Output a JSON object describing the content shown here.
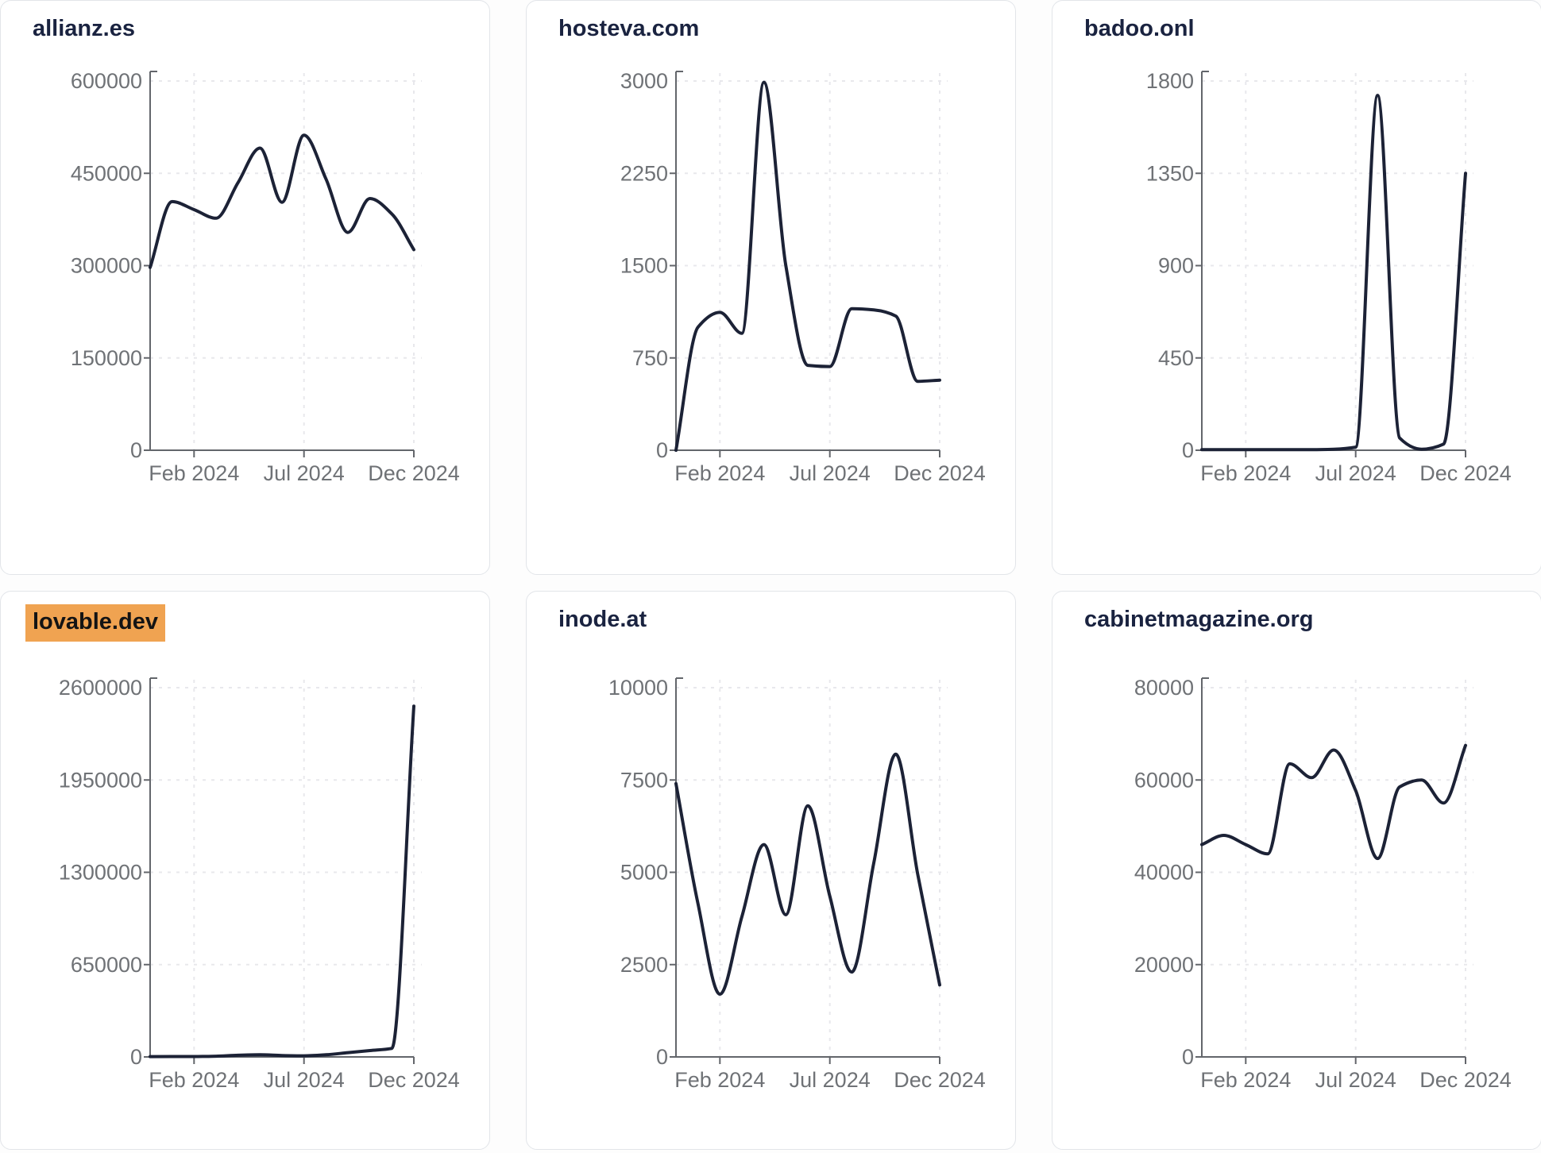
{
  "colors": {
    "line": "#1c2236",
    "title": "#1a2340",
    "tick_text": "#6f7276",
    "axis": "#63666b",
    "grid": "#e8e8ec",
    "card_background": "#ffffff",
    "card_border": "#e2e5e9",
    "page_background": "#fdfdfd",
    "highlight": "#f0a351",
    "highlight_text": "#141414"
  },
  "chart_data": [
    {
      "type": "line",
      "title": "allianz.es",
      "highlighted": false,
      "x": [
        "2023-12",
        "2024-01",
        "2024-02",
        "2024-03",
        "2024-04",
        "2024-05",
        "2024-06",
        "2024-07",
        "2024-08",
        "2024-09",
        "2024-10",
        "2024-11",
        "2024-12"
      ],
      "values": [
        297000,
        404000,
        391000,
        377000,
        435000,
        491000,
        403000,
        512000,
        441000,
        354000,
        409000,
        384000,
        326000
      ],
      "ylim": [
        0,
        600000
      ],
      "y_tick_labels": [
        "0",
        "150000",
        "300000",
        "450000",
        "600000"
      ],
      "x_tick_labels": [
        "Feb 2024",
        "Jul 2024",
        "Dec 2024"
      ],
      "x_tick_positions": [
        2,
        7,
        12
      ],
      "grid": true,
      "legend": false
    },
    {
      "type": "line",
      "title": "hosteva.com",
      "highlighted": false,
      "x": [
        "2023-12",
        "2024-01",
        "2024-02",
        "2024-03",
        "2024-04",
        "2024-05",
        "2024-06",
        "2024-07",
        "2024-08",
        "2024-09",
        "2024-10",
        "2024-11",
        "2024-12"
      ],
      "values": [
        0,
        1000,
        1120,
        950,
        2990,
        1500,
        690,
        680,
        1150,
        1140,
        1090,
        560,
        570
      ],
      "ylim": [
        0,
        3000
      ],
      "y_tick_labels": [
        "0",
        "750",
        "1500",
        "2250",
        "3000"
      ],
      "x_tick_labels": [
        "Feb 2024",
        "Jul 2024",
        "Dec 2024"
      ],
      "x_tick_positions": [
        2,
        7,
        12
      ],
      "grid": true,
      "legend": false
    },
    {
      "type": "line",
      "title": "badoo.onl",
      "highlighted": false,
      "x": [
        "2023-12",
        "2024-01",
        "2024-02",
        "2024-03",
        "2024-04",
        "2024-05",
        "2024-06",
        "2024-07",
        "2024-08",
        "2024-09",
        "2024-10",
        "2024-11",
        "2024-12"
      ],
      "values": [
        3,
        3,
        3,
        3,
        3,
        3,
        5,
        15,
        1730,
        60,
        5,
        30,
        1350
      ],
      "ylim": [
        0,
        1800
      ],
      "y_tick_labels": [
        "0",
        "450",
        "900",
        "1350",
        "1800"
      ],
      "x_tick_labels": [
        "Feb 2024",
        "Jul 2024",
        "Dec 2024"
      ],
      "x_tick_positions": [
        2,
        7,
        12
      ],
      "grid": true,
      "legend": false
    },
    {
      "type": "line",
      "title": "lovable.dev",
      "highlighted": true,
      "x": [
        "2023-12",
        "2024-01",
        "2024-02",
        "2024-03",
        "2024-04",
        "2024-05",
        "2024-06",
        "2024-07",
        "2024-08",
        "2024-09",
        "2024-10",
        "2024-11",
        "2024-12"
      ],
      "values": [
        2000,
        3000,
        3000,
        5000,
        12000,
        15000,
        10000,
        8000,
        15000,
        30000,
        45000,
        60000,
        2470000
      ],
      "ylim": [
        0,
        2600000
      ],
      "y_tick_labels": [
        "0",
        "650000",
        "1300000",
        "1950000",
        "2600000"
      ],
      "x_tick_labels": [
        "Feb 2024",
        "Jul 2024",
        "Dec 2024"
      ],
      "x_tick_positions": [
        2,
        7,
        12
      ],
      "grid": true,
      "legend": false
    },
    {
      "type": "line",
      "title": "inode.at",
      "highlighted": false,
      "x": [
        "2023-12",
        "2024-01",
        "2024-02",
        "2024-03",
        "2024-04",
        "2024-05",
        "2024-06",
        "2024-07",
        "2024-08",
        "2024-09",
        "2024-10",
        "2024-11",
        "2024-12"
      ],
      "values": [
        7400,
        4150,
        1700,
        3800,
        5750,
        3850,
        6800,
        4350,
        2300,
        5250,
        8200,
        4950,
        1950
      ],
      "ylim": [
        0,
        10000
      ],
      "y_tick_labels": [
        "0",
        "2500",
        "5000",
        "7500",
        "10000"
      ],
      "x_tick_labels": [
        "Feb 2024",
        "Jul 2024",
        "Dec 2024"
      ],
      "x_tick_positions": [
        2,
        7,
        12
      ],
      "grid": true,
      "legend": false
    },
    {
      "type": "line",
      "title": "cabinetmagazine.org",
      "highlighted": false,
      "x": [
        "2023-12",
        "2024-01",
        "2024-02",
        "2024-03",
        "2024-04",
        "2024-05",
        "2024-06",
        "2024-07",
        "2024-08",
        "2024-09",
        "2024-10",
        "2024-11",
        "2024-12"
      ],
      "values": [
        46000,
        48000,
        46000,
        44000,
        63500,
        60500,
        66500,
        57700,
        43000,
        58500,
        60000,
        55000,
        67500
      ],
      "ylim": [
        0,
        80000
      ],
      "y_tick_labels": [
        "0",
        "20000",
        "40000",
        "60000",
        "80000"
      ],
      "x_tick_labels": [
        "Feb 2024",
        "Jul 2024",
        "Dec 2024"
      ],
      "x_tick_positions": [
        2,
        7,
        12
      ],
      "grid": true,
      "legend": false
    }
  ]
}
